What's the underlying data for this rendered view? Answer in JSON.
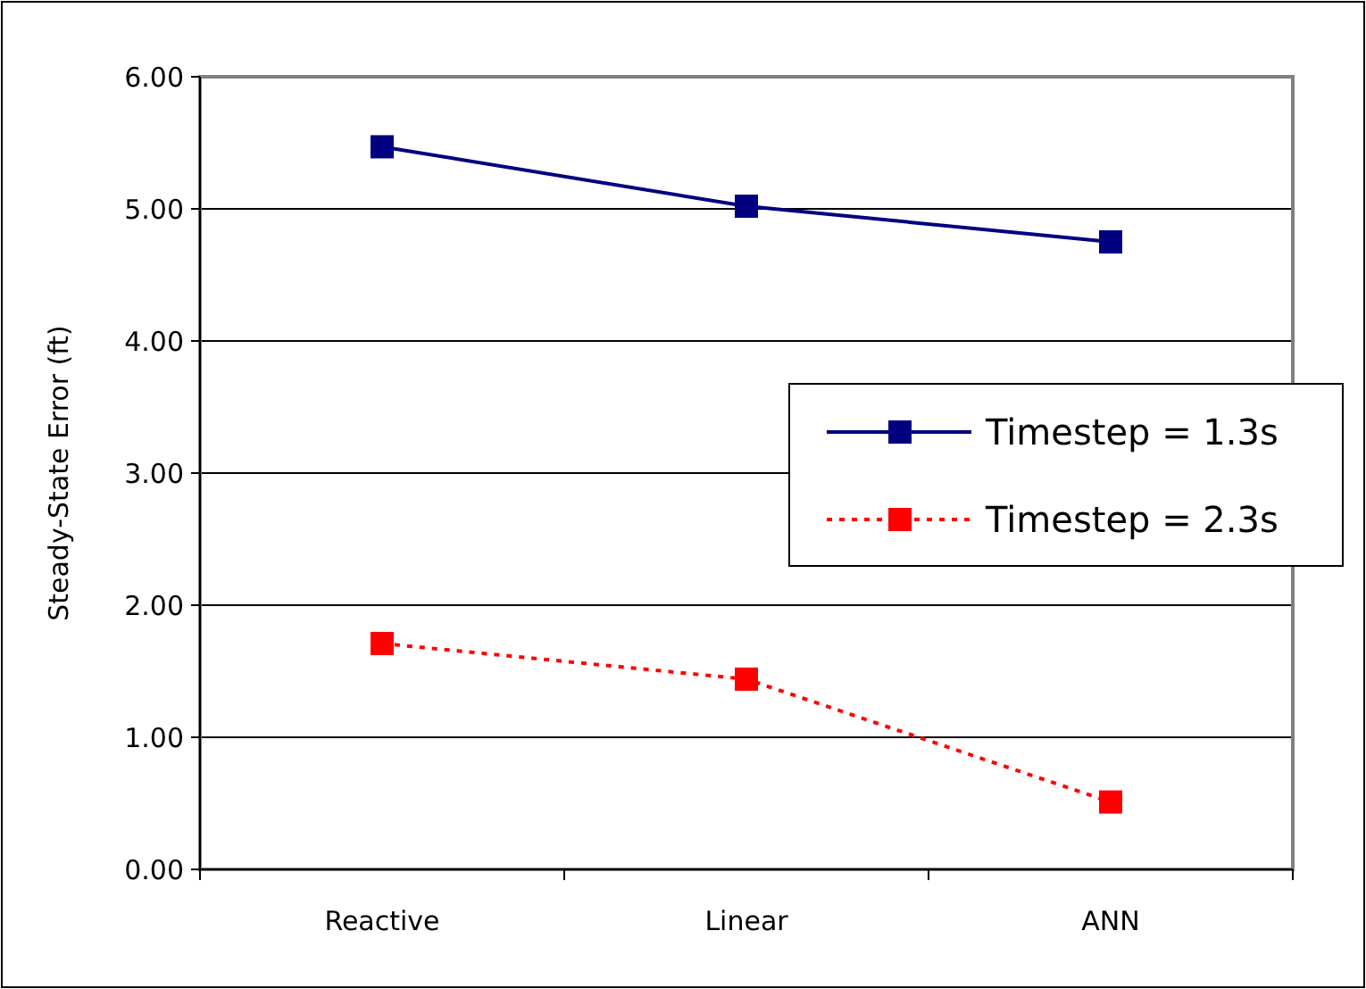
{
  "chart_data": {
    "type": "line",
    "ylabel": "Steady-State Error  (ft)",
    "categories": [
      "Reactive",
      "Linear",
      "ANN"
    ],
    "series": [
      {
        "name": "Timestep = 1.3s",
        "color": "#000080",
        "values": [
          5.47,
          5.02,
          4.75
        ],
        "line_style": "solid"
      },
      {
        "name": "Timestep = 2.3s",
        "color": "#ff0000",
        "values": [
          1.71,
          1.44,
          0.51
        ],
        "line_style": "dotted"
      }
    ],
    "ylim": [
      0,
      6
    ],
    "yticks": [
      {
        "value": 0,
        "label": "0.00"
      },
      {
        "value": 1,
        "label": "1.00"
      },
      {
        "value": 2,
        "label": "2.00"
      },
      {
        "value": 3,
        "label": "3.00"
      },
      {
        "value": 4,
        "label": "4.00"
      },
      {
        "value": 5,
        "label": "5.00"
      },
      {
        "value": 6,
        "label": "6.00"
      }
    ],
    "grid": "y",
    "legend": "right",
    "marker": "square"
  }
}
